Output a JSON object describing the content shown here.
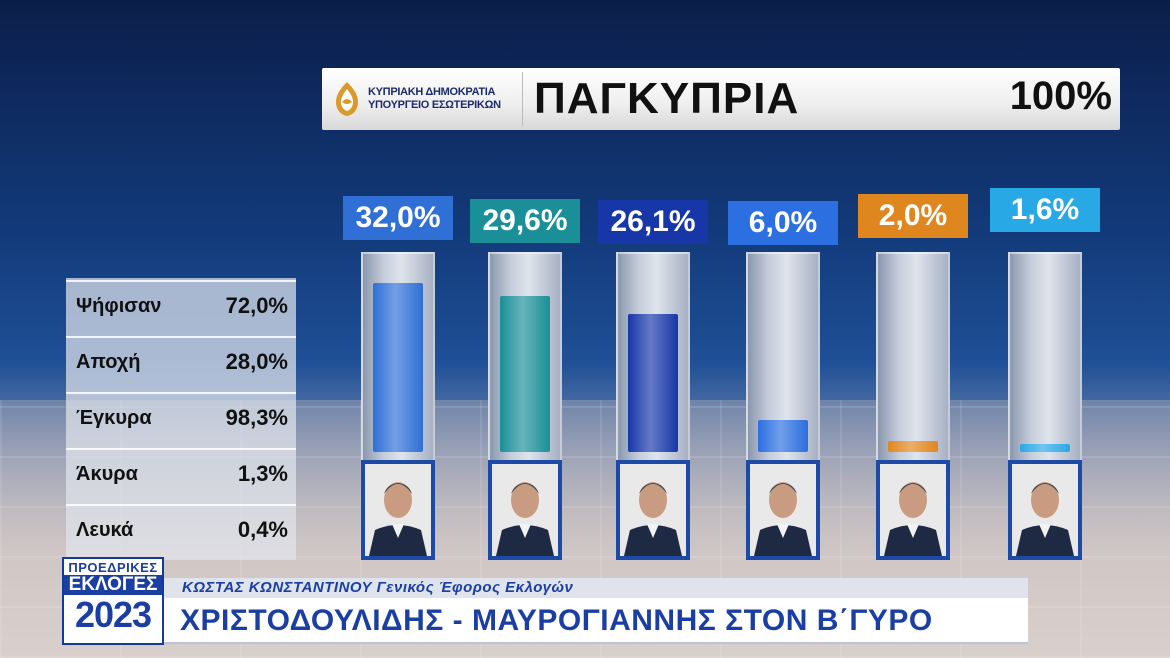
{
  "header": {
    "logo_line1": "ΚΥΠΡΙΑΚΗ ΔΗΜΟΚΡΑΤΙΑ",
    "logo_line2": "ΥΠΟΥΡΓΕΙΟ ΕΣΩΤΕΡΙΚΩΝ",
    "title": "ΠΑΓΚΥΠΡΙΑ",
    "counted": "100%"
  },
  "stats": [
    {
      "label": "Ψήφισαν",
      "value": "72,0%"
    },
    {
      "label": "Αποχή",
      "value": "28,0%"
    },
    {
      "label": "Έγκυρα",
      "value": "98,3%"
    },
    {
      "label": "Άκυρα",
      "value": "1,3%"
    },
    {
      "label": "Λευκά",
      "value": "0,4%"
    }
  ],
  "chart_data": {
    "type": "bar",
    "values": [
      32.0,
      29.6,
      26.1,
      6.0,
      2.0,
      1.6
    ],
    "labels": [
      "32,0%",
      "29,6%",
      "26,1%",
      "6,0%",
      "2,0%",
      "1,6%"
    ],
    "colors": [
      "#2f6fd6",
      "#1a8f97",
      "#1737a8",
      "#2b6fe0",
      "#e0861e",
      "#29a8e6"
    ],
    "ylim": [
      0,
      35
    ]
  },
  "ticker": {
    "logo_top": "ΠΡΟΕΔΡΙΚΕΣ",
    "logo_mid": "ΕΚΛΟΓΕΣ",
    "logo_year": "2023",
    "subtitle": "ΚΩΣΤΑΣ ΚΩΝΣΤΑΝΤΙΝΟΥ Γενικός Έφορος Εκλογών",
    "headline": "ΧΡΙΣΤΟΔΟΥΛΙΔΗΣ - ΜΑΥΡΟΓΙΑΝΝΗΣ ΣΤΟΝ Β΄ΓΥΡΟ"
  }
}
